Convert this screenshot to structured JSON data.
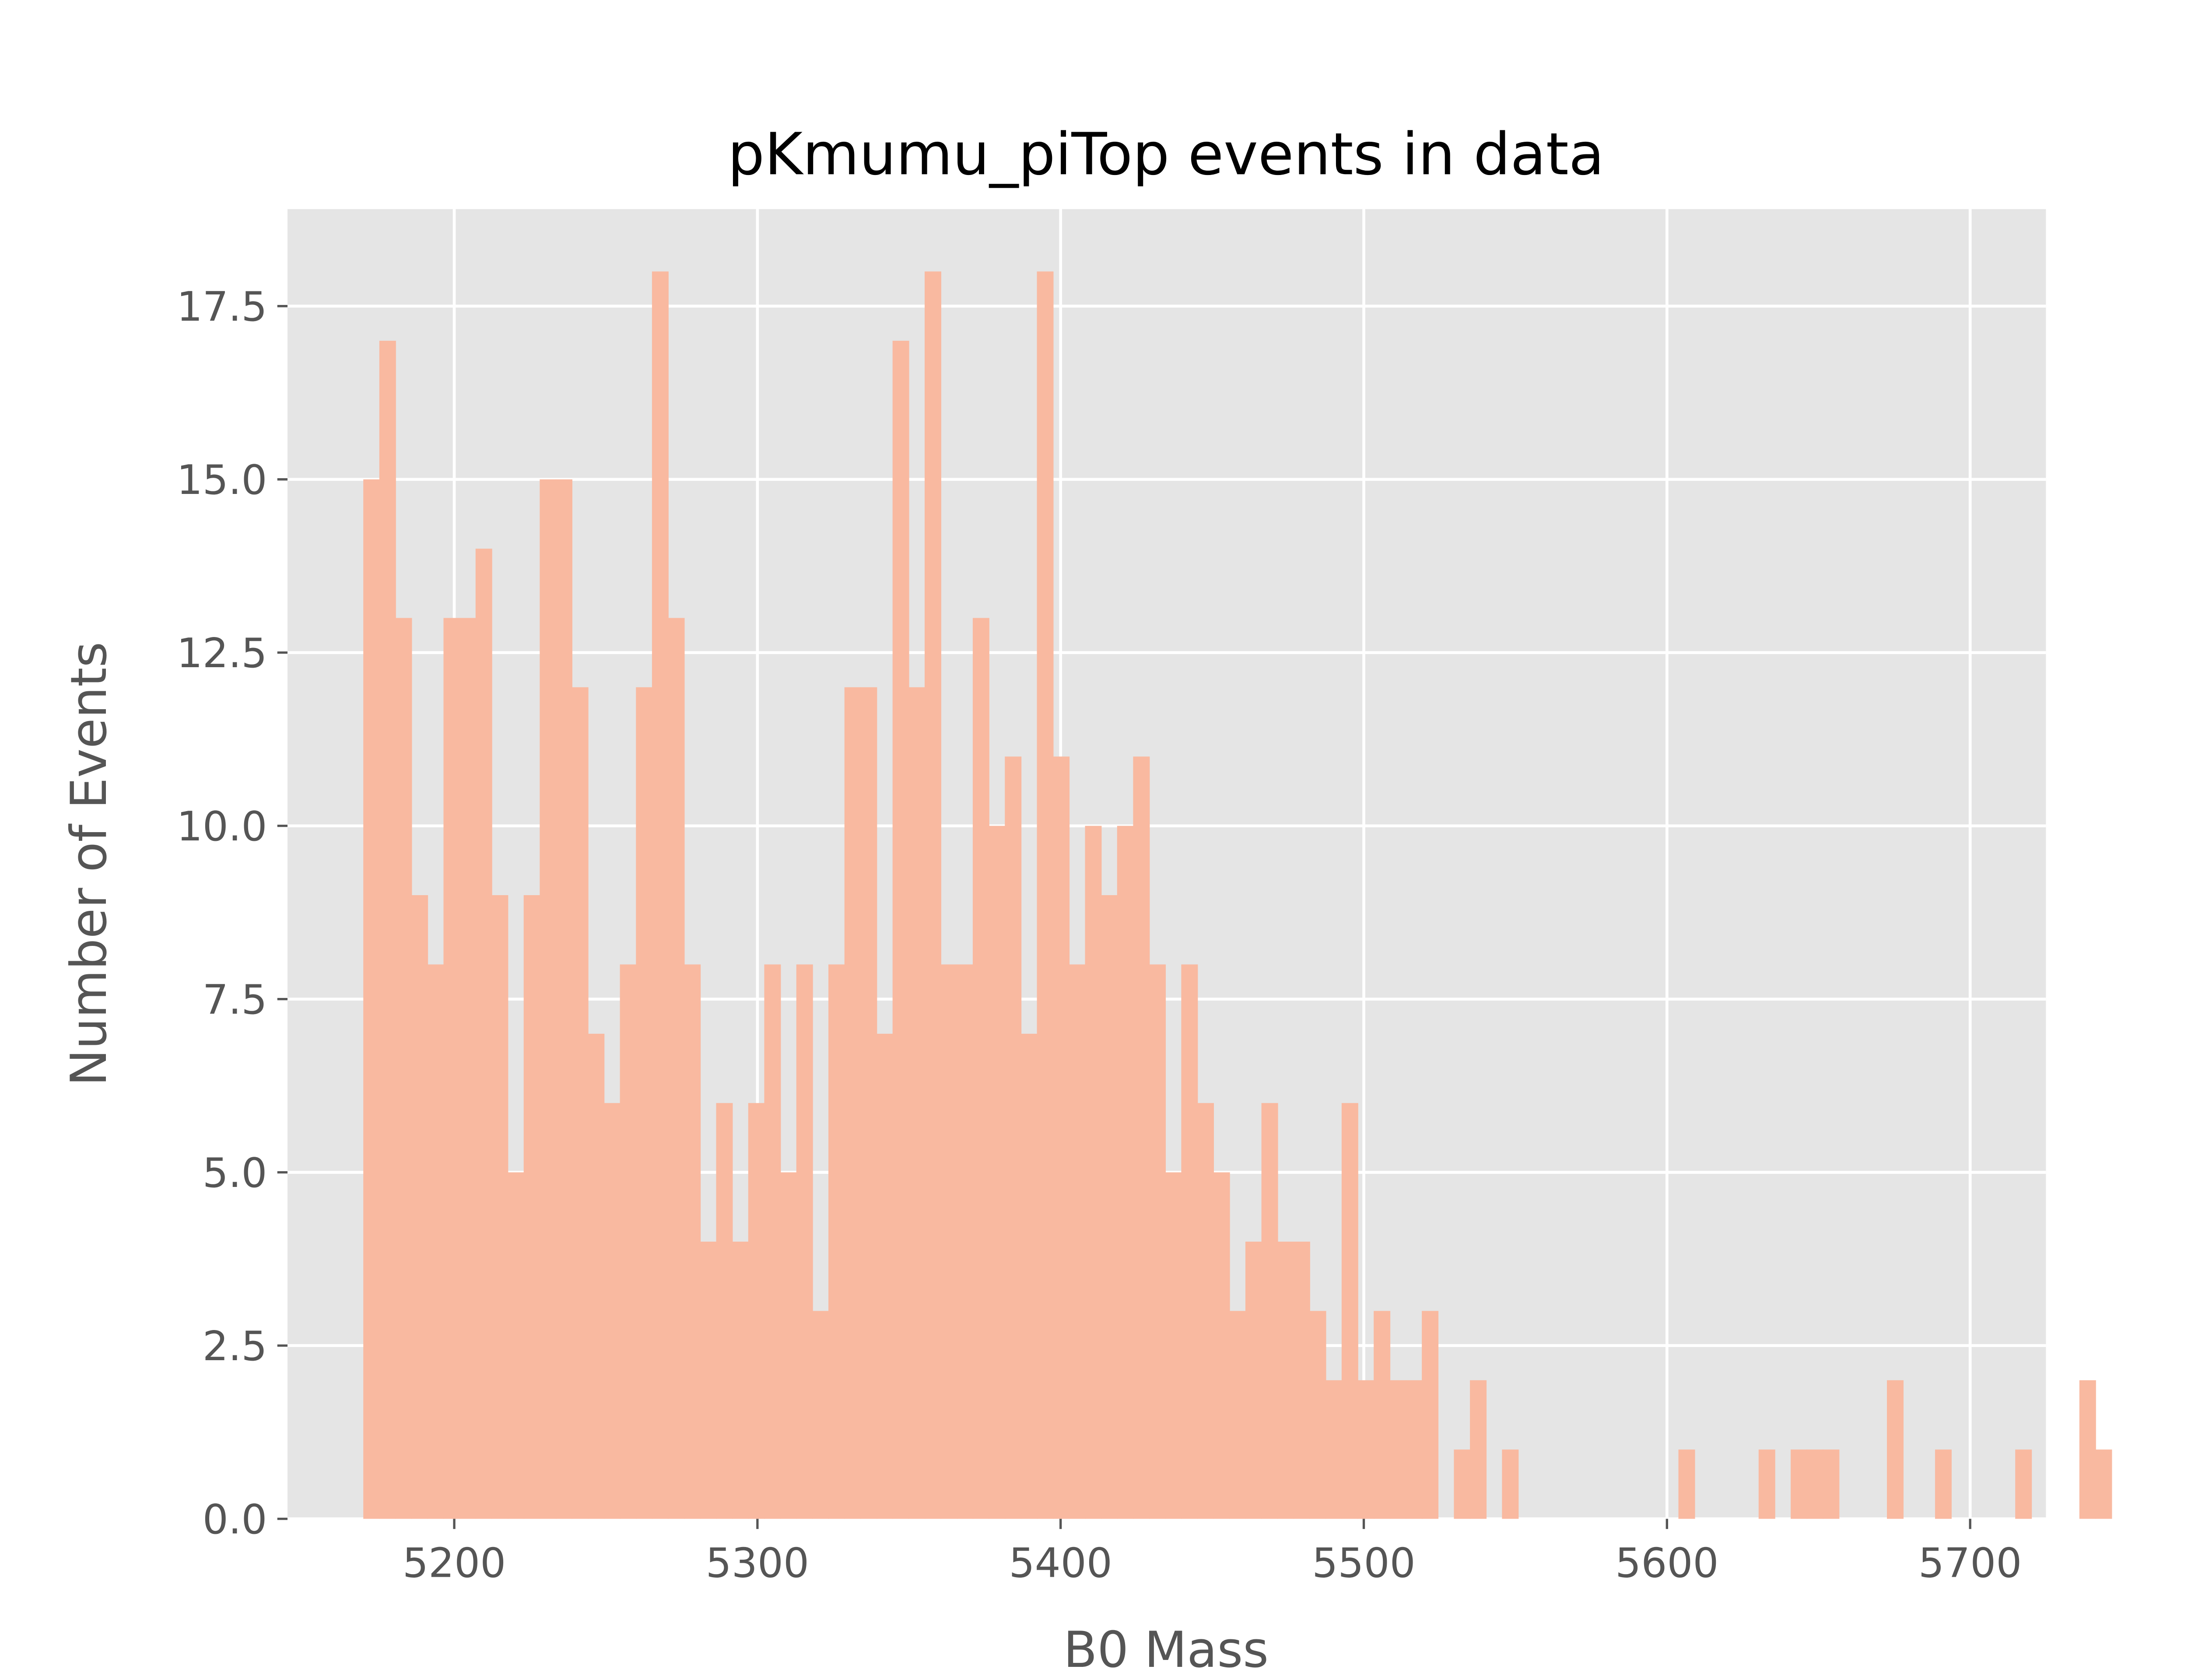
{
  "chart_data": {
    "type": "bar",
    "title": "pKmumu_piTop events in data",
    "xlabel": "B0 Mass",
    "ylabel": "Number of Events",
    "x_range": [
      5145,
      5725
    ],
    "ylim": [
      0,
      18.9
    ],
    "x_ticks": [
      5200,
      5300,
      5400,
      5500,
      5600,
      5700
    ],
    "y_ticks": [
      "0.0",
      "2.5",
      "5.0",
      "7.5",
      "10.0",
      "12.5",
      "15.0",
      "17.5"
    ],
    "y_tick_values": [
      0,
      2.5,
      5,
      7.5,
      10,
      12.5,
      15,
      17.5
    ],
    "grid": true,
    "bar_color": "#f9b9a0",
    "plot_background": "#e5e5e5",
    "grid_color": "#ffffff",
    "bin_start": 5170,
    "bin_width": 5.29,
    "values": [
      15,
      17,
      13,
      9,
      8,
      13,
      13,
      14,
      9,
      5,
      9,
      15,
      15,
      12,
      7,
      6,
      8,
      12,
      18,
      13,
      8,
      4,
      6,
      4,
      6,
      8,
      5,
      8,
      3,
      8,
      12,
      12,
      7,
      17,
      12,
      18,
      8,
      8,
      13,
      10,
      11,
      7,
      18,
      11,
      8,
      10,
      9,
      10,
      11,
      8,
      5,
      8,
      6,
      5,
      3,
      4,
      6,
      4,
      4,
      3,
      2,
      6,
      2,
      3,
      2,
      2,
      3,
      0,
      1,
      2,
      0,
      1,
      0,
      0,
      0,
      0,
      0,
      0,
      0,
      0,
      0,
      0,
      1,
      0,
      0,
      0,
      0,
      1,
      0,
      1,
      1,
      1,
      0,
      0,
      0,
      2,
      0,
      0,
      1,
      0,
      0,
      0,
      0,
      1,
      0,
      0,
      0,
      2,
      1,
      0
    ]
  }
}
